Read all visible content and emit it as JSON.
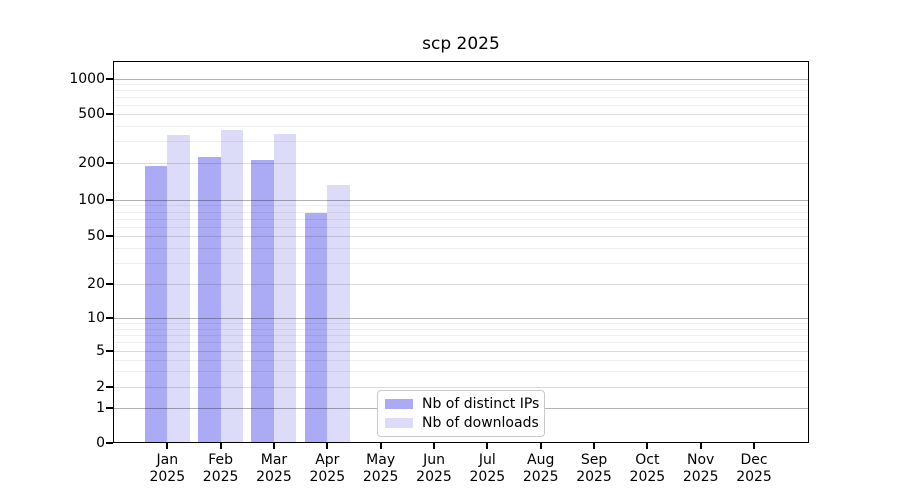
{
  "chart_data": {
    "type": "bar",
    "title": "scp 2025",
    "categories": [
      "Jan",
      "Feb",
      "Mar",
      "Apr",
      "May",
      "Jun",
      "Jul",
      "Aug",
      "Sep",
      "Oct",
      "Nov",
      "Dec"
    ],
    "x_sub_label": "2025",
    "series": [
      {
        "name": "Nb of distinct IPs",
        "color": "#aaaaf5",
        "values": [
          190,
          225,
          210,
          78,
          null,
          null,
          null,
          null,
          null,
          null,
          null,
          null
        ]
      },
      {
        "name": "Nb of downloads",
        "color": "#dcdcf9",
        "values": [
          340,
          370,
          345,
          132,
          null,
          null,
          null,
          null,
          null,
          null,
          null,
          null
        ]
      }
    ],
    "y_ticks": [
      0,
      1,
      2,
      5,
      10,
      20,
      50,
      100,
      200,
      500,
      1000
    ],
    "y_scale": "symlog",
    "ylim": [
      0,
      1400
    ],
    "grid": true,
    "legend_position": "lower center-left inside plot"
  }
}
